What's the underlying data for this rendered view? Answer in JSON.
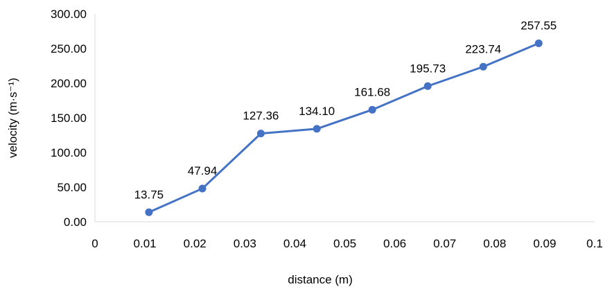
{
  "chart_data": {
    "type": "line",
    "title": "",
    "xlabel": "distance (m)",
    "ylabel": "velocity (m·s⁻¹)",
    "xlim": [
      0,
      0.1
    ],
    "ylim": [
      0,
      300
    ],
    "x_ticks": [
      "0",
      "0.01",
      "0.02",
      "0.03",
      "0.04",
      "0.05",
      "0.06",
      "0.07",
      "0.08",
      "0.09",
      "0.1"
    ],
    "y_ticks": [
      "0.00",
      "50.00",
      "100.00",
      "150.00",
      "200.00",
      "250.00",
      "300.00"
    ],
    "grid": false,
    "legend": "none",
    "series": [
      {
        "x": [
          0.0108,
          0.0215,
          0.0332,
          0.0444,
          0.0555,
          0.0666,
          0.0777,
          0.0888
        ],
        "values": [
          13.75,
          47.94,
          127.36,
          134.1,
          161.68,
          195.73,
          223.74,
          257.55
        ],
        "labels": [
          "13.75",
          "47.94",
          "127.36",
          "134.10",
          "161.68",
          "195.73",
          "223.74",
          "257.55"
        ],
        "color": "#4472C4"
      }
    ]
  }
}
